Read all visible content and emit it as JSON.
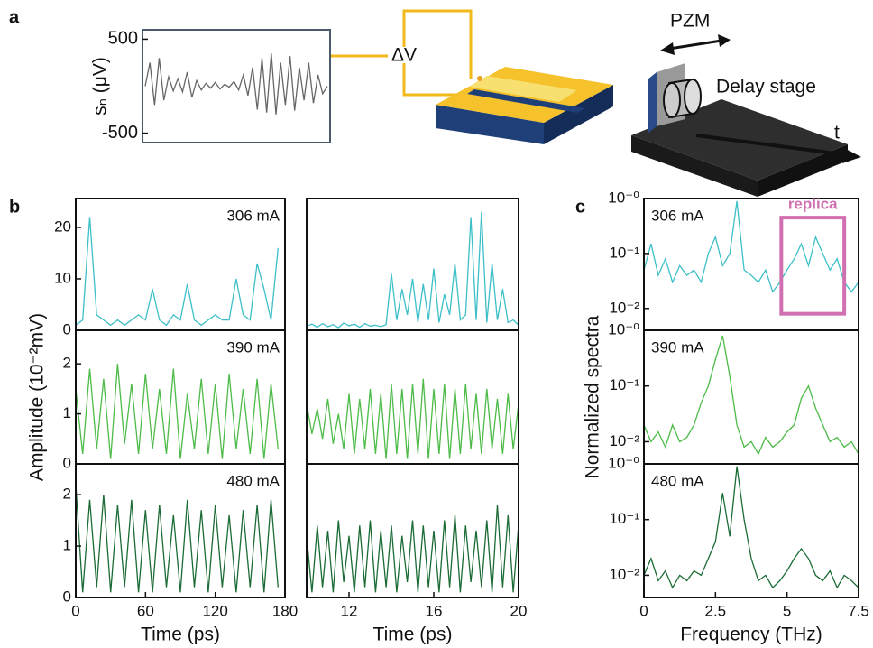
{
  "panel_labels": [
    "a",
    "b",
    "c"
  ],
  "diagram": {
    "voltage": "ΔV",
    "mirror": "PZM",
    "stage": "Delay stage",
    "delay": "t"
  },
  "chart_data": [
    {
      "type": "line",
      "ylim": [
        -600,
        600
      ],
      "yticks": [
        500,
        -500
      ],
      "ylabel": "sₙ (μV)",
      "series": [
        {
          "color": "#666666",
          "values": [
            0,
            250,
            -200,
            300,
            -150,
            100,
            -50,
            80,
            -60,
            150,
            -120,
            60,
            -40,
            30,
            -20,
            40,
            -30,
            20,
            -10,
            50,
            -40,
            120,
            -100,
            200,
            -250,
            300,
            -280,
            350,
            -300,
            250,
            -200,
            320,
            -260,
            200,
            -150,
            250,
            -180,
            120,
            -80,
            0
          ]
        }
      ]
    },
    {
      "type": "line",
      "xlim": [
        0,
        180
      ],
      "ylim": [
        0,
        25.6
      ],
      "yticks": [
        0,
        10,
        20
      ],
      "annotation": "306 mA",
      "x": [
        0,
        6,
        12,
        18,
        24,
        30,
        36,
        42,
        48,
        54,
        60,
        66,
        72,
        78,
        84,
        90,
        96,
        102,
        108,
        114,
        120,
        126,
        132,
        138,
        144,
        150,
        156,
        162,
        168,
        174
      ],
      "series": [
        {
          "color": "#3cbfc8",
          "values": [
            1,
            2,
            22,
            3,
            2,
            1,
            2,
            1,
            2,
            3,
            2,
            8,
            2,
            1,
            3,
            2,
            9,
            2,
            1,
            2,
            3,
            2,
            2,
            10,
            3,
            2,
            13,
            8,
            2,
            16
          ]
        }
      ]
    },
    {
      "type": "line",
      "xlim": [
        0,
        180
      ],
      "ylim": [
        0,
        2.67
      ],
      "yticks": [
        0,
        1,
        2
      ],
      "annotation": "390 mA",
      "ylabel": "Amplitude (10⁻²mV)",
      "x": [
        0,
        6,
        12,
        18,
        24,
        30,
        36,
        42,
        48,
        54,
        60,
        66,
        72,
        78,
        84,
        90,
        96,
        102,
        108,
        114,
        120,
        126,
        132,
        138,
        144,
        150,
        156,
        162,
        168,
        174
      ],
      "series": [
        {
          "color": "#4cbb47",
          "values": [
            1.5,
            0.2,
            1.9,
            0.3,
            1.7,
            0.1,
            2.0,
            0.4,
            1.6,
            0.2,
            1.8,
            0.3,
            1.5,
            0.2,
            1.9,
            0.1,
            1.4,
            0.3,
            1.7,
            0.2,
            1.6,
            0.1,
            1.8,
            0.3,
            1.5,
            0.2,
            1.7,
            0.1,
            1.6,
            0.3
          ]
        }
      ]
    },
    {
      "type": "line",
      "xlim": [
        0,
        180
      ],
      "ylim": [
        0,
        2.6
      ],
      "yticks": [
        0,
        1,
        2
      ],
      "annotation": "480 mA",
      "xticks": [
        0,
        60,
        120,
        180
      ],
      "xlabel": "Time (ps)",
      "x": [
        0,
        6,
        12,
        18,
        24,
        30,
        36,
        42,
        48,
        54,
        60,
        66,
        72,
        78,
        84,
        90,
        96,
        102,
        108,
        114,
        120,
        126,
        132,
        138,
        144,
        150,
        156,
        162,
        168,
        174
      ],
      "series": [
        {
          "color": "#1a6b35",
          "values": [
            2.2,
            0.1,
            1.9,
            0.2,
            2.0,
            0.1,
            1.8,
            0.2,
            1.9,
            0.1,
            1.7,
            0.1,
            1.8,
            0.2,
            1.6,
            0.1,
            1.9,
            0.2,
            1.7,
            0.1,
            1.8,
            0.2,
            1.6,
            0.1,
            1.7,
            0.2,
            1.8,
            0.1,
            1.9,
            0.2
          ]
        }
      ]
    },
    {
      "type": "line",
      "xlim": [
        10,
        20
      ],
      "ylim": [
        0,
        25.6
      ],
      "x": [
        10,
        10.25,
        10.5,
        10.75,
        11,
        11.25,
        11.5,
        11.75,
        12,
        12.25,
        12.5,
        12.75,
        13,
        13.25,
        13.5,
        13.75,
        14,
        14.25,
        14.5,
        14.75,
        15,
        15.25,
        15.5,
        15.75,
        16,
        16.25,
        16.5,
        16.75,
        17,
        17.25,
        17.5,
        17.75,
        18,
        18.25,
        18.5,
        18.75,
        19,
        19.25,
        19.5,
        19.75,
        20
      ],
      "series": [
        {
          "color": "#3cbfc8",
          "values": [
            0.8,
            1.2,
            0.6,
            1.3,
            0.7,
            1.1,
            0.5,
            1.4,
            0.9,
            1.2,
            0.6,
            1.3,
            0.8,
            1.0,
            0.7,
            1.1,
            11,
            2,
            8,
            3,
            10,
            1.5,
            9,
            2,
            12,
            1.5,
            7,
            3,
            13,
            2,
            3,
            22,
            2,
            23,
            1.5,
            13,
            2,
            8,
            1.5,
            2,
            1
          ]
        }
      ]
    },
    {
      "type": "line",
      "xlim": [
        10,
        20
      ],
      "ylim": [
        0,
        2.67
      ],
      "x": [
        10,
        10.25,
        10.5,
        10.75,
        11,
        11.25,
        11.5,
        11.75,
        12,
        12.25,
        12.5,
        12.75,
        13,
        13.25,
        13.5,
        13.75,
        14,
        14.25,
        14.5,
        14.75,
        15,
        15.25,
        15.5,
        15.75,
        16,
        16.25,
        16.5,
        16.75,
        17,
        17.25,
        17.5,
        17.75,
        18,
        18.25,
        18.5,
        18.75,
        19,
        19.25,
        19.5,
        19.75,
        20
      ],
      "series": [
        {
          "color": "#4cbb47",
          "values": [
            1.2,
            0.6,
            1.1,
            0.5,
            1.3,
            0.4,
            1.0,
            0.3,
            1.4,
            0.2,
            1.3,
            0.3,
            1.5,
            0.2,
            1.4,
            0.1,
            1.6,
            0.2,
            1.5,
            0.1,
            1.6,
            0.2,
            1.7,
            0.1,
            1.5,
            0.2,
            1.6,
            0.1,
            1.5,
            0.2,
            1.6,
            0.3,
            1.4,
            0.2,
            1.5,
            0.3,
            1.3,
            0.2,
            1.4,
            0.3,
            1.2
          ]
        }
      ]
    },
    {
      "type": "line",
      "xlim": [
        10,
        20
      ],
      "ylim": [
        0,
        2.6
      ],
      "xticks": [
        12,
        16,
        20
      ],
      "xlabel": "Time (ps)",
      "x": [
        10,
        10.25,
        10.5,
        10.75,
        11,
        11.25,
        11.5,
        11.75,
        12,
        12.25,
        12.5,
        12.75,
        13,
        13.25,
        13.5,
        13.75,
        14,
        14.25,
        14.5,
        14.75,
        15,
        15.25,
        15.5,
        15.75,
        16,
        16.25,
        16.5,
        16.75,
        17,
        17.25,
        17.5,
        17.75,
        18,
        18.25,
        18.5,
        18.75,
        19,
        19.25,
        19.5,
        19.75,
        20
      ],
      "series": [
        {
          "color": "#1a6b35",
          "values": [
            1.2,
            0.1,
            1.4,
            0.2,
            1.3,
            0.1,
            1.5,
            0.3,
            1.2,
            0.1,
            1.4,
            0.2,
            1.5,
            0.1,
            1.3,
            0.2,
            1.4,
            0.1,
            1.2,
            0.3,
            1.5,
            0.1,
            1.4,
            0.2,
            1.3,
            0.1,
            1.5,
            0.2,
            1.6,
            0.1,
            1.4,
            0.3,
            1.3,
            0.2,
            1.5,
            0.1,
            1.8,
            0.2,
            1.6,
            0.1,
            1.4
          ]
        }
      ]
    },
    {
      "type": "line",
      "log_y": true,
      "xlim": [
        0,
        7.5
      ],
      "ylim": [
        0.004,
        1
      ],
      "annotation": "306 mA",
      "yticks": [
        {
          "value": 1,
          "label": "10⁻⁰"
        },
        {
          "value": 0.1,
          "label": "10⁻¹"
        },
        {
          "value": 0.01,
          "label": "10⁻²"
        }
      ],
      "replica": {
        "label": "replica",
        "xlim": [
          4.8,
          7.0
        ],
        "ylim": [
          0.008,
          0.45
        ],
        "color": "#d070b0"
      },
      "x": [
        0,
        0.25,
        0.5,
        0.75,
        1,
        1.25,
        1.5,
        1.75,
        2,
        2.25,
        2.5,
        2.75,
        3,
        3.25,
        3.5,
        3.75,
        4,
        4.25,
        4.5,
        4.75,
        5,
        5.25,
        5.5,
        5.75,
        6,
        6.25,
        6.5,
        6.75,
        7,
        7.25,
        7.5
      ],
      "series": [
        {
          "color": "#3cbfc8",
          "values": [
            0.05,
            0.15,
            0.04,
            0.08,
            0.03,
            0.06,
            0.04,
            0.05,
            0.03,
            0.1,
            0.2,
            0.06,
            0.1,
            0.9,
            0.05,
            0.04,
            0.03,
            0.05,
            0.02,
            0.03,
            0.05,
            0.08,
            0.15,
            0.06,
            0.2,
            0.1,
            0.05,
            0.08,
            0.03,
            0.02,
            0.03
          ]
        }
      ]
    },
    {
      "type": "line",
      "log_y": true,
      "xlim": [
        0,
        7.5
      ],
      "ylim": [
        0.004,
        1
      ],
      "annotation": "390 mA",
      "ylabel": "Normalized spectra",
      "yticks": [
        {
          "value": 1,
          "label": "10⁻⁰"
        },
        {
          "value": 0.1,
          "label": "10⁻¹"
        },
        {
          "value": 0.01,
          "label": "10⁻²"
        }
      ],
      "x": [
        0,
        0.25,
        0.5,
        0.75,
        1,
        1.25,
        1.5,
        1.75,
        2,
        2.25,
        2.5,
        2.75,
        3,
        3.25,
        3.5,
        3.75,
        4,
        4.25,
        4.5,
        4.75,
        5,
        5.25,
        5.5,
        5.75,
        6,
        6.25,
        6.5,
        6.75,
        7,
        7.25,
        7.5
      ],
      "series": [
        {
          "color": "#4cbb47",
          "values": [
            0.02,
            0.01,
            0.015,
            0.008,
            0.02,
            0.01,
            0.012,
            0.02,
            0.05,
            0.1,
            0.3,
            0.8,
            0.15,
            0.02,
            0.008,
            0.01,
            0.006,
            0.012,
            0.008,
            0.01,
            0.015,
            0.02,
            0.06,
            0.1,
            0.04,
            0.02,
            0.01,
            0.012,
            0.008,
            0.01,
            0.006
          ]
        }
      ]
    },
    {
      "type": "line",
      "log_y": true,
      "xlim": [
        0,
        7.5
      ],
      "ylim": [
        0.004,
        1
      ],
      "annotation": "480 mA",
      "yticks": [
        {
          "value": 1,
          "label": "10⁻⁰"
        },
        {
          "value": 0.1,
          "label": "10⁻¹"
        },
        {
          "value": 0.01,
          "label": "10⁻²"
        }
      ],
      "xticks": [
        0,
        2.5,
        5,
        7.5
      ],
      "xlabel": "Frequency (THz)",
      "x": [
        0,
        0.25,
        0.5,
        0.75,
        1,
        1.25,
        1.5,
        1.75,
        2,
        2.25,
        2.5,
        2.75,
        3,
        3.25,
        3.5,
        3.75,
        4,
        4.25,
        4.5,
        4.75,
        5,
        5.25,
        5.5,
        5.75,
        6,
        6.25,
        6.5,
        6.75,
        7,
        7.25,
        7.5
      ],
      "series": [
        {
          "color": "#1a6b35",
          "values": [
            0.01,
            0.02,
            0.008,
            0.012,
            0.006,
            0.01,
            0.008,
            0.012,
            0.01,
            0.02,
            0.04,
            0.3,
            0.05,
            0.9,
            0.1,
            0.02,
            0.008,
            0.01,
            0.006,
            0.008,
            0.012,
            0.02,
            0.03,
            0.02,
            0.01,
            0.008,
            0.012,
            0.006,
            0.01,
            0.008,
            0.006
          ]
        }
      ]
    }
  ]
}
